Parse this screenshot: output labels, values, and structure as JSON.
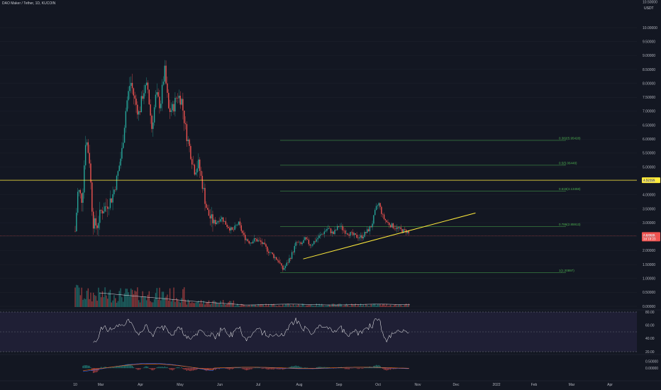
{
  "header": {
    "title": "DAO Maker / Tether, 1D, KUCOIN",
    "currency_top": "10.50000",
    "currency_unit": "USDT"
  },
  "colors": {
    "background": "#131722",
    "up": "#26a69a",
    "down": "#ef5350",
    "trendline": "#ffeb3b",
    "fib": "#4caf50",
    "rsi": "#ffffff",
    "rsi_band": "#7e57c2"
  },
  "price_axis": {
    "labels": [
      "10.00000",
      "9.50000",
      "9.00000",
      "8.50000",
      "8.00000",
      "7.50000",
      "7.00000",
      "6.50000",
      "6.00000",
      "5.50000",
      "5.00000",
      "4.50000",
      "4.00000",
      "3.50000",
      "3.00000",
      "2.50000",
      "2.00000",
      "1.50000",
      "1.00000",
      "0.50000",
      "0.00000"
    ],
    "values": [
      10,
      9.5,
      9,
      8.5,
      8,
      7.5,
      7,
      6.5,
      6,
      5.5,
      5,
      4.5,
      4,
      3.5,
      3,
      2.5,
      2,
      1.5,
      1,
      0.5,
      0
    ]
  },
  "horizontal_level": {
    "label": "4.52699",
    "value": 4.52699
  },
  "current_price": {
    "label": "2.53609",
    "sub": "2d 18:23",
    "value": 2.53609
  },
  "fib_levels": [
    {
      "label": "0.382(5.95428)",
      "value": 5.95428
    },
    {
      "label": "0.5(5.06448)",
      "value": 5.06448
    },
    {
      "label": "0.618(4.13458)",
      "value": 4.13458
    },
    {
      "label": "0.786(2.85913)",
      "value": 2.85913
    },
    {
      "label": "1(1.20897)",
      "value": 1.20897
    }
  ],
  "rsi_axis": {
    "labels": [
      "80.00",
      "60.00",
      "40.00",
      "20.00"
    ],
    "values": [
      80,
      60,
      40,
      20
    ]
  },
  "macd_axis": {
    "labels": [
      "0.50000",
      "0.00000"
    ],
    "values": [
      0.5,
      0
    ]
  },
  "time_axis": {
    "labels": [
      "10",
      "Mar",
      "Apr",
      "May",
      "Jun",
      "Jul",
      "Aug",
      "Sep",
      "Oct",
      "Nov",
      "Dec",
      "2022",
      "Feb",
      "Mar",
      "Apr"
    ]
  },
  "chart_data": {
    "type": "candlestick",
    "instrument": "DAO Maker / Tether",
    "interval": "1D",
    "exchange": "KUCOIN",
    "ohlc_segments": [
      {
        "from": "Feb 10",
        "to": "Mar 1",
        "low": 2.6,
        "high": 6.3
      },
      {
        "from": "Mar 1",
        "to": "Apr 20",
        "low": 3.8,
        "high": 8.6
      },
      {
        "from": "Apr 20",
        "to": "May 20",
        "low": 2.5,
        "high": 8.9
      },
      {
        "from": "May 20",
        "to": "Jul 25",
        "low": 1.2,
        "high": 4.5
      },
      {
        "from": "Jul 25",
        "to": "Oct 1",
        "low": 1.2,
        "high": 3.0
      },
      {
        "from": "Oct 1",
        "to": "Oct 28",
        "low": 2.4,
        "high": 3.8
      }
    ],
    "key_prices": {
      "high": 8.9,
      "low": 1.2,
      "last": 2.53609
    },
    "trendline": {
      "from": {
        "date": "Aug 4",
        "price": 1.7
      },
      "to": {
        "date": "Dec 16",
        "price": 3.35
      }
    },
    "rsi_range": [
      25,
      80
    ],
    "ylim": [
      0,
      10.5
    ]
  }
}
